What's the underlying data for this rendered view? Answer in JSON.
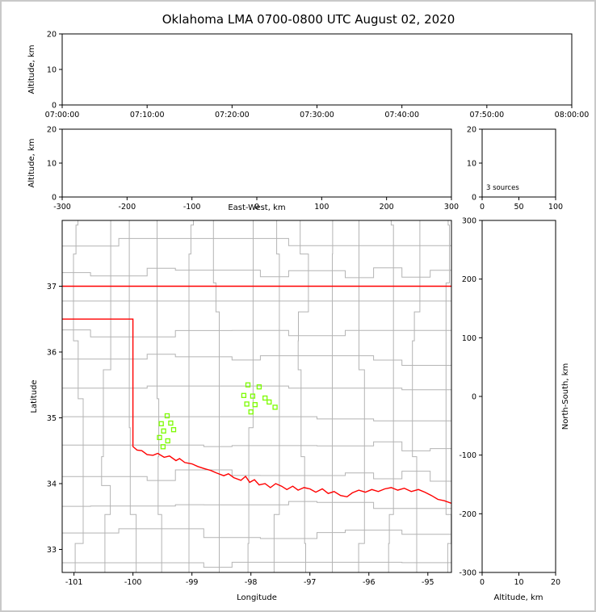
{
  "title": "Oklahoma LMA 0700-0800 UTC August 02, 2020",
  "colors": {
    "state_border": "#ff0000",
    "county_line": "#b4b4b4",
    "source_marker": "#7CFC00",
    "axis": "#000000",
    "background": "#ffffff",
    "figure_border": "#c9c9c9"
  },
  "chart_data": [
    {
      "id": "time_height_panel",
      "type": "scatter",
      "xlabel": "",
      "ylabel": "Altitude, km",
      "x_tick_labels": [
        "07:00:00",
        "07:10:00",
        "07:20:00",
        "07:30:00",
        "07:40:00",
        "07:50:00",
        "08:00:00"
      ],
      "ylim": [
        0,
        20
      ],
      "yticks": [
        0,
        10,
        20
      ],
      "points": []
    },
    {
      "id": "ew_height_panel",
      "type": "scatter",
      "xlabel": "East-West, km",
      "ylabel": "Altitude, km",
      "xlim": [
        -300,
        300
      ],
      "xticks": [
        -300,
        -200,
        -100,
        0,
        100,
        200,
        300
      ],
      "ylim": [
        0,
        20
      ],
      "yticks": [
        0,
        10,
        20
      ],
      "points": []
    },
    {
      "id": "source_histogram_panel",
      "type": "bar",
      "annotation": "3 sources",
      "xlim": [
        0,
        100
      ],
      "xticks": [
        0,
        50,
        100
      ],
      "ylim": [
        0,
        20
      ],
      "yticks": [
        0,
        10,
        20
      ],
      "values": []
    },
    {
      "id": "plan_view_panel",
      "type": "scatter",
      "xlabel": "Longitude",
      "ylabel": "Latitude",
      "xlim": [
        -101.2,
        -94.6
      ],
      "xticks": [
        -101,
        -100,
        -99,
        -98,
        -97,
        -96,
        -95
      ],
      "ylim": [
        32.65,
        38.0
      ],
      "yticks": [
        33,
        34,
        35,
        36,
        37
      ],
      "sources": [
        [
          -99.42,
          35.03
        ],
        [
          -99.52,
          34.91
        ],
        [
          -99.36,
          34.92
        ],
        [
          -99.48,
          34.8
        ],
        [
          -99.31,
          34.82
        ],
        [
          -99.55,
          34.7
        ],
        [
          -99.41,
          34.65
        ],
        [
          -99.49,
          34.56
        ],
        [
          -98.05,
          35.5
        ],
        [
          -97.86,
          35.47
        ],
        [
          -98.12,
          35.34
        ],
        [
          -97.97,
          35.33
        ],
        [
          -97.76,
          35.3
        ],
        [
          -98.07,
          35.21
        ],
        [
          -97.93,
          35.2
        ],
        [
          -97.69,
          35.24
        ],
        [
          -98.0,
          35.09
        ],
        [
          -97.59,
          35.16
        ]
      ],
      "state_border_segments": [
        [
          [
            -101.2,
            37.0
          ],
          [
            -94.6,
            37.0
          ]
        ],
        [
          [
            -101.2,
            36.5
          ],
          [
            -100.0,
            36.5
          ],
          [
            -100.0,
            34.563
          ],
          [
            -99.93,
            34.51
          ],
          [
            -99.85,
            34.5
          ],
          [
            -99.76,
            34.44
          ],
          [
            -99.66,
            34.43
          ],
          [
            -99.58,
            34.46
          ],
          [
            -99.47,
            34.4
          ],
          [
            -99.38,
            34.42
          ],
          [
            -99.27,
            34.35
          ],
          [
            -99.21,
            34.38
          ],
          [
            -99.12,
            34.32
          ],
          [
            -99.0,
            34.3
          ],
          [
            -98.9,
            34.26
          ],
          [
            -98.8,
            34.23
          ],
          [
            -98.68,
            34.2
          ],
          [
            -98.58,
            34.16
          ],
          [
            -98.46,
            34.12
          ],
          [
            -98.38,
            34.15
          ],
          [
            -98.29,
            34.09
          ],
          [
            -98.17,
            34.05
          ],
          [
            -98.09,
            34.11
          ],
          [
            -98.02,
            34.02
          ],
          [
            -97.94,
            34.06
          ],
          [
            -97.86,
            33.98
          ],
          [
            -97.76,
            34.0
          ],
          [
            -97.67,
            33.94
          ],
          [
            -97.58,
            34.0
          ],
          [
            -97.48,
            33.96
          ],
          [
            -97.39,
            33.91
          ],
          [
            -97.29,
            33.96
          ],
          [
            -97.2,
            33.9
          ],
          [
            -97.1,
            33.94
          ],
          [
            -97.0,
            33.92
          ],
          [
            -96.9,
            33.87
          ],
          [
            -96.79,
            33.92
          ],
          [
            -96.69,
            33.85
          ],
          [
            -96.59,
            33.88
          ],
          [
            -96.48,
            33.82
          ],
          [
            -96.37,
            33.8
          ],
          [
            -96.28,
            33.86
          ],
          [
            -96.17,
            33.9
          ],
          [
            -96.06,
            33.87
          ],
          [
            -95.95,
            33.91
          ],
          [
            -95.84,
            33.88
          ],
          [
            -95.73,
            33.92
          ],
          [
            -95.62,
            33.94
          ],
          [
            -95.51,
            33.9
          ],
          [
            -95.4,
            33.93
          ],
          [
            -95.28,
            33.88
          ],
          [
            -95.16,
            33.91
          ],
          [
            -95.05,
            33.87
          ],
          [
            -94.94,
            33.82
          ],
          [
            -94.83,
            33.76
          ],
          [
            -94.72,
            33.74
          ],
          [
            -94.6,
            33.7
          ]
        ]
      ]
    },
    {
      "id": "ns_height_panel",
      "type": "scatter",
      "xlabel": "Altitude, km",
      "ylabel": "North-South, km",
      "xlim": [
        0,
        20
      ],
      "xticks": [
        0,
        10,
        20
      ],
      "ylim": [
        -300,
        300
      ],
      "yticks": [
        -300,
        -200,
        -100,
        0,
        100,
        200,
        300
      ],
      "points": []
    }
  ]
}
